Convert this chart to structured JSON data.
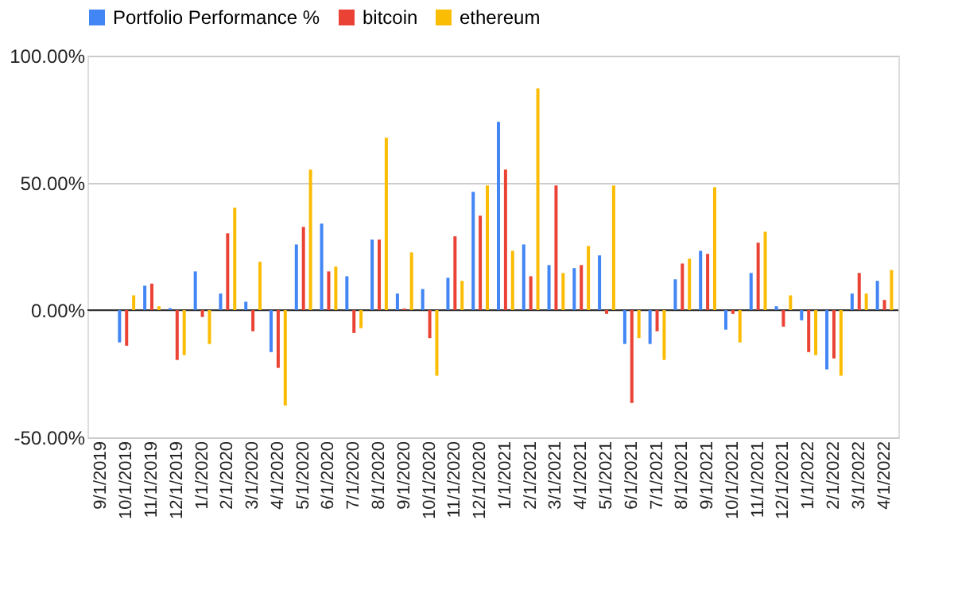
{
  "chart_data": {
    "type": "bar",
    "categories": [
      "9/1/2019",
      "10/1/2019",
      "11/1/2019",
      "12/1/2019",
      "1/1/2020",
      "2/1/2020",
      "3/1/2020",
      "4/1/2020",
      "5/1/2020",
      "6/1/2020",
      "7/1/2020",
      "8/1/2020",
      "9/1/2020",
      "10/1/2020",
      "11/1/2020",
      "12/1/2020",
      "1/1/2021",
      "2/1/2021",
      "3/1/2021",
      "4/1/2021",
      "5/1/2021",
      "6/1/2021",
      "7/1/2021",
      "8/1/2021",
      "9/1/2021",
      "10/1/2021",
      "11/1/2021",
      "12/1/2021",
      "1/1/2022",
      "2/1/2022",
      "3/1/2022",
      "4/1/2022"
    ],
    "series": [
      {
        "name": "Portfolio Performance %",
        "color": "#4285f4",
        "values": [
          null,
          -12.7,
          9.6,
          0.8,
          15.2,
          6.5,
          3.3,
          -16.5,
          25.8,
          34,
          13.3,
          27.7,
          6.5,
          8.3,
          12.7,
          46.5,
          74,
          25.8,
          17.7,
          16.5,
          21.5,
          -13.3,
          -13.3,
          12.1,
          23.3,
          -7.7,
          14.6,
          1.5,
          -4,
          -23.3,
          6.5,
          11.5
        ]
      },
      {
        "name": "bitcoin",
        "color": "#ea4335",
        "values": [
          null,
          -14,
          10.4,
          -19.6,
          -2.7,
          30.2,
          -8.3,
          -22.7,
          32.7,
          15.2,
          -9,
          27.7,
          0.6,
          -11,
          29,
          37.1,
          55.2,
          13.3,
          49,
          17.7,
          -1.5,
          -36.5,
          -8.3,
          18.3,
          22.1,
          -1.5,
          26.5,
          -6.5,
          -16.5,
          -19,
          14.6,
          4
        ]
      },
      {
        "name": "ethereum",
        "color": "#fbbc04",
        "values": [
          null,
          5.8,
          1.5,
          -17.7,
          -13.3,
          40.2,
          19,
          -37.5,
          55.2,
          17.1,
          -7.1,
          67.7,
          22.7,
          -25.8,
          11.5,
          49,
          23.3,
          87.1,
          14.6,
          25.2,
          49,
          -11,
          -19.6,
          20.2,
          48.3,
          -12.7,
          30.8,
          5.8,
          -17.7,
          -25.8,
          6.5,
          15.8
        ]
      }
    ],
    "ylim": [
      -50,
      100
    ],
    "yticks": [
      {
        "value": -50,
        "label": "-50.00%"
      },
      {
        "value": 0,
        "label": "0.00%"
      },
      {
        "value": 50,
        "label": "50.00%"
      },
      {
        "value": 100,
        "label": "100.00%"
      }
    ],
    "grid": "y",
    "legend": "top",
    "ref_lines": [
      {
        "axis": "y",
        "value": 0,
        "color": "#333333"
      }
    ]
  }
}
